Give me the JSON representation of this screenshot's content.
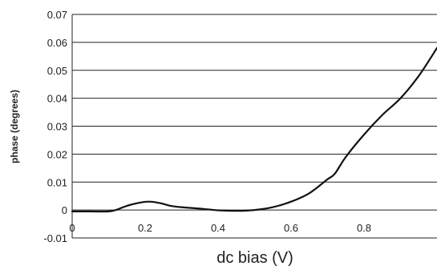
{
  "chart_data": {
    "type": "line",
    "title": "",
    "xlabel": "dc bias (V)",
    "ylabel": "phase (degrees)",
    "xlim": [
      0,
      1.0
    ],
    "ylim": [
      -0.01,
      0.07
    ],
    "x_ticks": [
      "0",
      "0.2",
      "0.4",
      "0.6",
      "0.8"
    ],
    "y_ticks": [
      "0.07",
      "0.06",
      "0.05",
      "0.04",
      "0.03",
      "0.02",
      "0.01",
      "0",
      "-0.01"
    ],
    "grid": "horizontal",
    "series": [
      {
        "x": [
          0.0,
          0.05,
          0.1,
          0.12,
          0.15,
          0.18,
          0.21,
          0.24,
          0.27,
          0.3,
          0.35,
          0.4,
          0.45,
          0.5,
          0.55,
          0.6,
          0.65,
          0.7,
          0.72,
          0.75,
          0.8,
          0.85,
          0.9,
          0.95,
          1.0
        ],
        "values": [
          -0.0005,
          -0.0005,
          -0.0005,
          0.0,
          0.0015,
          0.0025,
          0.003,
          0.0025,
          0.0015,
          0.001,
          0.0005,
          -0.0001,
          -0.0003,
          0.0,
          0.001,
          0.003,
          0.006,
          0.011,
          0.013,
          0.019,
          0.027,
          0.034,
          0.04,
          0.048,
          0.058
        ]
      }
    ]
  }
}
